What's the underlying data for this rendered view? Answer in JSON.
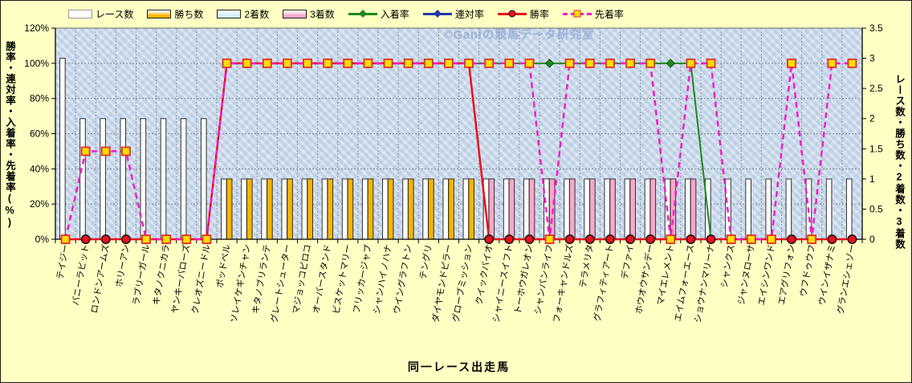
{
  "watermark": "©Ganiの競馬データ研究室",
  "legend": [
    {
      "label": "レース数",
      "kind": "bar",
      "color": "#FFFFFF",
      "edge": "#9a9a9a"
    },
    {
      "label": "勝ち数",
      "kind": "bar",
      "color": "#F7B500",
      "edge": "#222222"
    },
    {
      "label": "2着数",
      "kind": "bar",
      "color": "#CFF0FA",
      "edge": "#222222"
    },
    {
      "label": "3着数",
      "kind": "bar",
      "color": "#F9A7CB",
      "edge": "#222222"
    },
    {
      "label": "入着率",
      "kind": "line-diamond",
      "color": "#1E8A1E"
    },
    {
      "label": "連対率",
      "kind": "line-diamond",
      "color": "#2238A8"
    },
    {
      "label": "勝率",
      "kind": "line-circle",
      "color": "#E8121C"
    },
    {
      "label": "先着率",
      "kind": "line-square-dashed",
      "color": "#F01EC8",
      "marker_fill": "#FFDD00"
    }
  ],
  "axes": {
    "left_ticks": [
      "120%",
      "100%",
      "80%",
      "60%",
      "40%",
      "20%",
      "0%"
    ],
    "left_values": [
      120,
      100,
      80,
      60,
      40,
      20,
      0
    ],
    "right_ticks": [
      "3.5",
      "3",
      "2.5",
      "2",
      "1.5",
      "1",
      "0.5",
      "0"
    ],
    "right_values": [
      3.5,
      3,
      2.5,
      2,
      1.5,
      1,
      0.5,
      0
    ]
  },
  "chart_data": {
    "type": "bar+line combo",
    "title": "",
    "xlabel": "同一レース出走馬",
    "ylabel_left": "勝率・連対率・入着率・先着率(%)",
    "ylabel_right": "レース数・勝ち数・2着数・3着数",
    "ylim_left": [
      0,
      120
    ],
    "ylim_right": [
      0,
      3.5
    ],
    "grid": true,
    "legend_position": "top",
    "categories": [
      "テイジー",
      "バニーラビット",
      "ロンドンアームズ",
      "ホリーアン",
      "ラブリーガール",
      "キタノクニカラ",
      "ヤンキーバローズ",
      "クレオズニードル",
      "ポッドベル",
      "ソレイケギンチャン",
      "キタノブリランテ",
      "グレートシューター",
      "マジョッコピロコ",
      "オーバースタンド",
      "ビスケットマリー",
      "フリッカージャブ",
      "シャンハイノハナ",
      "ウイングラフトン",
      "テングリ",
      "ダイヤモンドピラー",
      "グローブミッション",
      "クイックバイオ",
      "シャイニースイフト",
      "トーホウガレオン",
      "シャンパンライフ",
      "フォーキャンドルズ",
      "テラメリタ",
      "グラフィティアート",
      "デファイ",
      "ホウオウサンデー",
      "マイエレメント",
      "エイムフォーエース",
      "ショウナンマリーナ",
      "シャンクス",
      "ジャンヌローサ",
      "エイシンワンド",
      "エアグリフォン",
      "ウフドゥウフ",
      "ウインイザナミ",
      "グランエシェゾー"
    ],
    "series": [
      {
        "name": "レース数",
        "role": "bar",
        "axis": "right",
        "color": "#FFFFFF",
        "stroke": "#333333",
        "values": [
          3,
          2,
          2,
          2,
          2,
          2,
          2,
          2,
          1,
          1,
          1,
          1,
          1,
          1,
          1,
          1,
          1,
          1,
          1,
          1,
          1,
          1,
          1,
          1,
          1,
          1,
          1,
          1,
          1,
          1,
          1,
          1,
          1,
          1,
          1,
          1,
          1,
          1,
          1,
          1
        ]
      },
      {
        "name": "勝ち数",
        "role": "bar",
        "axis": "right",
        "color": "#F7B500",
        "stroke": "#333333",
        "values": [
          0,
          0,
          0,
          0,
          0,
          0,
          0,
          0,
          1,
          1,
          1,
          1,
          1,
          1,
          1,
          1,
          1,
          1,
          1,
          1,
          1,
          0,
          0,
          0,
          0,
          0,
          0,
          0,
          0,
          0,
          0,
          0,
          0,
          0,
          0,
          0,
          0,
          0,
          0,
          0
        ]
      },
      {
        "name": "2着数",
        "role": "bar",
        "axis": "right",
        "color": "#CFF0FA",
        "stroke": "#333333",
        "values": [
          0,
          0,
          0,
          0,
          0,
          0,
          0,
          0,
          0,
          0,
          0,
          0,
          0,
          0,
          0,
          0,
          0,
          0,
          0,
          0,
          0,
          0,
          0,
          0,
          0,
          0,
          0,
          0,
          0,
          0,
          0,
          0,
          0,
          0,
          0,
          0,
          0,
          0,
          0,
          0
        ]
      },
      {
        "name": "3着数",
        "role": "bar",
        "axis": "right",
        "color": "#F9A7CB",
        "stroke": "#333333",
        "values": [
          0,
          0,
          0,
          0,
          0,
          0,
          0,
          0,
          0,
          0,
          0,
          0,
          0,
          0,
          0,
          0,
          0,
          0,
          0,
          0,
          0,
          1,
          1,
          1,
          1,
          1,
          1,
          1,
          1,
          1,
          1,
          1,
          0,
          0,
          0,
          0,
          0,
          0,
          0,
          0
        ]
      },
      {
        "name": "入着率",
        "role": "line",
        "axis": "left",
        "color": "#1E8A1E",
        "marker": "diamond",
        "dash": "none",
        "values": [
          0,
          0,
          0,
          0,
          0,
          0,
          0,
          0,
          100,
          100,
          100,
          100,
          100,
          100,
          100,
          100,
          100,
          100,
          100,
          100,
          100,
          100,
          100,
          100,
          100,
          100,
          100,
          100,
          100,
          100,
          100,
          100,
          0,
          0,
          0,
          0,
          0,
          0,
          0,
          0
        ]
      },
      {
        "name": "連対率",
        "role": "line",
        "axis": "left",
        "color": "#2238A8",
        "marker": "diamond",
        "dash": "none",
        "values": [
          0,
          0,
          0,
          0,
          0,
          0,
          0,
          0,
          100,
          100,
          100,
          100,
          100,
          100,
          100,
          100,
          100,
          100,
          100,
          100,
          100,
          0,
          0,
          0,
          0,
          0,
          0,
          0,
          0,
          0,
          0,
          0,
          0,
          0,
          0,
          0,
          0,
          0,
          0,
          0
        ]
      },
      {
        "name": "勝率",
        "role": "line",
        "axis": "left",
        "color": "#E8121C",
        "marker": "circle",
        "dash": "none",
        "values": [
          0,
          0,
          0,
          0,
          0,
          0,
          0,
          0,
          100,
          100,
          100,
          100,
          100,
          100,
          100,
          100,
          100,
          100,
          100,
          100,
          100,
          0,
          0,
          0,
          0,
          0,
          0,
          0,
          0,
          0,
          0,
          0,
          0,
          0,
          0,
          0,
          0,
          0,
          0,
          0
        ]
      },
      {
        "name": "先着率",
        "role": "line",
        "axis": "left",
        "color": "#F01EC8",
        "marker": "square",
        "marker_fill": "#FFDD00",
        "dash": "7 5",
        "values": [
          0,
          50,
          50,
          50,
          0,
          0,
          0,
          0,
          100,
          100,
          100,
          100,
          100,
          100,
          100,
          100,
          100,
          100,
          100,
          100,
          100,
          100,
          100,
          100,
          0,
          100,
          100,
          100,
          100,
          100,
          0,
          100,
          100,
          0,
          0,
          0,
          100,
          0,
          100,
          100
        ]
      }
    ]
  }
}
